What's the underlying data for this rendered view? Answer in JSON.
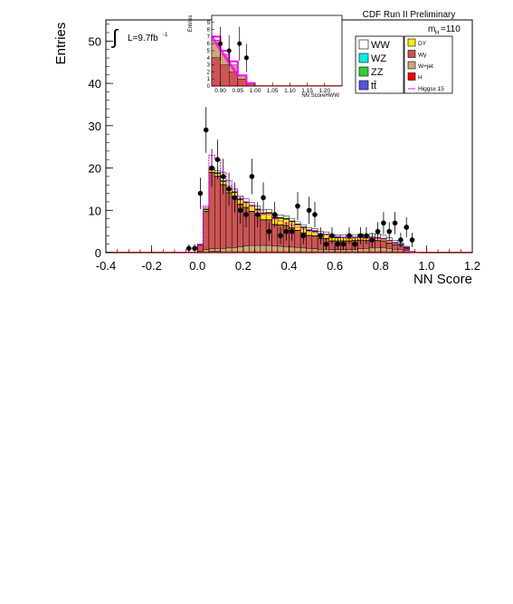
{
  "chart_data": {
    "type": "bar",
    "title": "CDF Run II Preliminary",
    "xlabel": "NN Score",
    "ylabel": "Entries",
    "xlim": [
      -0.4,
      1.2
    ],
    "ylim": [
      0,
      55
    ],
    "x_ticks": [
      "-0.4",
      "-0.2",
      "0.0",
      "0.2",
      "0.4",
      "0.6",
      "0.8",
      "1.0",
      "1.2"
    ],
    "y_ticks": [
      "0",
      "10",
      "20",
      "30",
      "40",
      "50"
    ],
    "lumi_label": "L=9.7fb",
    "lumi_exp": "-1",
    "mass_label_main": "m",
    "mass_label_sub": "H",
    "mass_label_val": "=110",
    "bin_width": 0.025,
    "bin_start": -0.05,
    "stack_order": [
      "H",
      "W+jet",
      "Wγ",
      "ZZ",
      "DY",
      "tt̄",
      "WZ",
      "WW"
    ],
    "series": [
      {
        "name": "H",
        "color": "#ff0000",
        "values": [
          0,
          0,
          0.1,
          0.2,
          0.3,
          0.3,
          0.2,
          0.2,
          0.2,
          0.2,
          0.2,
          0.2,
          0.2,
          0.2,
          0.2,
          0.2,
          0.2,
          0.2,
          0.2,
          0.2,
          0.2,
          0.2,
          0.2,
          0.2,
          0.2,
          0.2,
          0.2,
          0.2,
          0.2,
          0.2,
          0.2,
          0.2,
          0.2,
          0.2,
          0.2,
          0.2,
          0.2,
          0.2,
          0.2,
          0.2,
          0
        ]
      },
      {
        "name": "W+jet",
        "color": "#d2a679",
        "values": [
          0,
          0,
          0.2,
          0.5,
          0.6,
          0.7,
          0.8,
          0.9,
          1,
          1.2,
          1.4,
          1.5,
          1.5,
          1.5,
          1.5,
          1.4,
          1.3,
          1.2,
          1.1,
          1,
          0.9,
          0.8,
          0.7,
          0.6,
          0.6,
          0.5,
          0.5,
          0.5,
          0.5,
          0.6,
          0.7,
          0.8,
          0.9,
          1,
          1,
          0.8,
          0.6,
          0.5,
          0.3,
          0,
          0
        ]
      },
      {
        "name": "Wγ",
        "color": "#cc5555",
        "values": [
          0,
          0,
          1.5,
          9,
          18,
          17,
          15,
          13,
          12,
          10,
          9,
          8,
          7,
          6,
          6,
          5,
          5,
          5,
          4.5,
          4,
          3.5,
          3,
          3,
          2.5,
          2.5,
          2,
          2,
          2,
          2,
          2,
          2,
          1.8,
          1.8,
          1.6,
          1.5,
          1.2,
          1,
          0.8,
          0.4,
          0,
          0
        ]
      },
      {
        "name": "ZZ",
        "color": "#33cc33",
        "values": [
          0,
          0,
          0,
          0.1,
          0.1,
          0.1,
          0.1,
          0.1,
          0.1,
          0.1,
          0.1,
          0.1,
          0.1,
          0.1,
          0.1,
          0.1,
          0.1,
          0.1,
          0.1,
          0.1,
          0.1,
          0.1,
          0.1,
          0.1,
          0.1,
          0.1,
          0.1,
          0.1,
          0.1,
          0.1,
          0.1,
          0.1,
          0.1,
          0.1,
          0.1,
          0.1,
          0.1,
          0.1,
          0.1,
          0,
          0
        ]
      },
      {
        "name": "DY",
        "color": "#ffee00",
        "values": [
          0,
          0,
          0.1,
          0.3,
          0.5,
          0.6,
          0.7,
          0.8,
          0.9,
          1,
          1.1,
          1.2,
          1.3,
          1.4,
          1.5,
          1.5,
          1.5,
          1.4,
          1.4,
          1.3,
          1.2,
          1.1,
          1,
          0.9,
          0.8,
          0.8,
          0.7,
          0.7,
          0.6,
          0.6,
          0.6,
          0.5,
          0.5,
          0.5,
          0.4,
          0.4,
          0.3,
          0.2,
          0.1,
          0,
          0
        ]
      },
      {
        "name": "tt̄",
        "color": "#5555dd",
        "values": [
          0,
          0,
          0,
          0.1,
          0.1,
          0.1,
          0.1,
          0.1,
          0.1,
          0.1,
          0.1,
          0.1,
          0.1,
          0.1,
          0.1,
          0.1,
          0.1,
          0.1,
          0.1,
          0.1,
          0.1,
          0.1,
          0.1,
          0.1,
          0.1,
          0.1,
          0.1,
          0.1,
          0.1,
          0.1,
          0.1,
          0.1,
          0.1,
          0.1,
          0.1,
          0.1,
          0.1,
          0.1,
          0.1,
          0,
          0
        ]
      },
      {
        "name": "WZ",
        "color": "#00eeee",
        "values": [
          0,
          0,
          0,
          0.1,
          0.1,
          0.1,
          0.1,
          0.1,
          0.1,
          0.1,
          0.1,
          0.1,
          0.1,
          0.1,
          0.1,
          0.1,
          0.1,
          0.1,
          0.1,
          0.1,
          0.1,
          0.1,
          0.1,
          0.1,
          0.1,
          0.1,
          0.1,
          0.1,
          0.1,
          0.1,
          0.1,
          0.1,
          0.1,
          0.1,
          0.1,
          0.1,
          0.1,
          0.1,
          0.1,
          0,
          0
        ]
      },
      {
        "name": "WW",
        "color": "#ffffff",
        "values": [
          0,
          0,
          0,
          0.3,
          0.4,
          0.5,
          0.6,
          0.6,
          0.6,
          0.7,
          0.7,
          0.7,
          0.7,
          0.7,
          0.7,
          0.6,
          0.6,
          0.6,
          0.6,
          0.5,
          0.5,
          0.5,
          0.5,
          0.5,
          0.5,
          0.5,
          0.5,
          0.5,
          0.5,
          0.5,
          0.6,
          0.7,
          0.8,
          0.8,
          0.7,
          0.6,
          0.5,
          0.3,
          0.2,
          0,
          0
        ]
      }
    ],
    "signal": {
      "name": "Higgsx 15",
      "color": "#ff00ff",
      "values": [
        0,
        0,
        2,
        11,
        23,
        22,
        19,
        17,
        15,
        13,
        12,
        11,
        10,
        9,
        9,
        8,
        7.5,
        7,
        6.5,
        6,
        5.5,
        5,
        4.8,
        4.5,
        4.3,
        4,
        3.8,
        3.6,
        3.5,
        3.5,
        3.5,
        3.5,
        3.5,
        3.4,
        3.2,
        2.8,
        2.2,
        1.5,
        0.8,
        0,
        0
      ]
    },
    "data_points": {
      "x": [
        -0.0375,
        -0.0125,
        0.0125,
        0.0375,
        0.0625,
        0.0875,
        0.1125,
        0.1375,
        0.1625,
        0.1875,
        0.2125,
        0.2375,
        0.2625,
        0.2875,
        0.3125,
        0.3375,
        0.3625,
        0.3875,
        0.4125,
        0.4375,
        0.4625,
        0.4875,
        0.5125,
        0.5375,
        0.5625,
        0.5875,
        0.6125,
        0.6375,
        0.6625,
        0.6875,
        0.7125,
        0.7375,
        0.7625,
        0.7875,
        0.8125,
        0.8375,
        0.8625,
        0.8875,
        0.9125,
        0.9375
      ],
      "y": [
        1,
        1,
        14,
        29,
        20,
        22,
        18,
        15,
        13,
        10,
        9,
        18,
        9,
        13,
        5,
        9,
        4,
        5,
        5,
        11,
        4,
        10,
        9,
        4,
        2,
        4,
        2,
        2,
        4,
        2,
        4,
        4,
        3,
        5,
        7,
        5,
        7,
        3,
        6,
        3
      ],
      "err": [
        1,
        1,
        3.7,
        5.4,
        4.5,
        4.7,
        4.2,
        3.9,
        3.6,
        3.2,
        3,
        4.2,
        3,
        3.6,
        2.2,
        3,
        2,
        2.2,
        2.2,
        3.3,
        2,
        3.2,
        3,
        2,
        1.4,
        2,
        1.4,
        1.4,
        2,
        1.4,
        2,
        2,
        1.7,
        2.2,
        2.6,
        2.2,
        2.6,
        1.7,
        2.4,
        1.7
      ]
    },
    "legend": [
      {
        "label": "WW",
        "color": "#ffffff"
      },
      {
        "label": "WZ",
        "color": "#00eeee"
      },
      {
        "label": "ZZ",
        "color": "#33cc33"
      },
      {
        "label": "tt̄",
        "color": "#5555dd"
      },
      {
        "label": "DY",
        "color": "#ffee00"
      },
      {
        "label": "Wγ",
        "color": "#cc5555"
      },
      {
        "label": "W+jet",
        "color": "#d2a679"
      },
      {
        "label": "H",
        "color": "#ff0000"
      },
      {
        "label": "Higgsx 15",
        "color": "#ff00ff"
      }
    ],
    "inset": {
      "xlabel": "NN ScoreHWW",
      "ylabel": "Entries",
      "xlim": [
        0.875,
        1.25
      ],
      "ylim": [
        0,
        10
      ],
      "x_ticks": [
        "0.90",
        "0.95",
        "1.00",
        "1.05",
        "1.10",
        "1.15",
        "1.20"
      ],
      "y_ticks": [
        "0",
        "1",
        "2",
        "3",
        "4",
        "5",
        "6",
        "7",
        "8",
        "9"
      ],
      "bins_x": [
        0.875,
        0.9,
        0.925,
        0.95,
        0.975,
        1.0
      ],
      "stack_totals": [
        6.5,
        4.5,
        3,
        1.5,
        0.5
      ],
      "wg_values": [
        4,
        3,
        2,
        1,
        0.3
      ],
      "signal_values": [
        7,
        5,
        3.5,
        1.5,
        0.4
      ],
      "data_points": {
        "x": [
          0.9,
          0.925,
          0.955,
          0.975
        ],
        "y": [
          6,
          5,
          6,
          4
        ],
        "err": [
          2.4,
          2.2,
          2.4,
          2
        ]
      }
    }
  }
}
